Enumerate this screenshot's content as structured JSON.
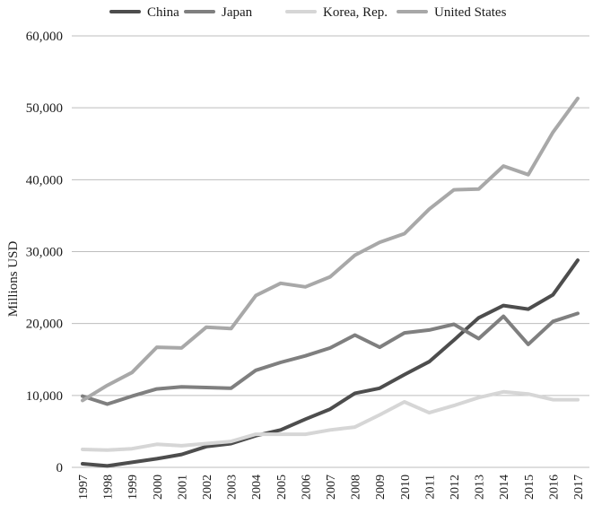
{
  "chart_data": {
    "type": "line",
    "title": "",
    "xlabel": "",
    "ylabel": "Millions USD",
    "ylim": [
      0,
      60000
    ],
    "yticks": [
      "0",
      "10,000",
      "20,000",
      "30,000",
      "40,000",
      "50,000",
      "60,000"
    ],
    "grid": true,
    "legend_position": "top",
    "x": [
      "1997",
      "1998",
      "1999",
      "2000",
      "2001",
      "2002",
      "2003",
      "2004",
      "2005",
      "2006",
      "2007",
      "2008",
      "2009",
      "2010",
      "2011",
      "2012",
      "2013",
      "2014",
      "2015",
      "2016",
      "2017"
    ],
    "series": [
      {
        "name": "China",
        "color": "#4d4d4d",
        "values": [
          500,
          200,
          700,
          1200,
          1800,
          2900,
          3300,
          4400,
          5200,
          6700,
          8100,
          10300,
          11000,
          12900,
          14700,
          17700,
          20800,
          22500,
          22000,
          24000,
          28800
        ]
      },
      {
        "name": "Japan",
        "color": "#7f7f7f",
        "values": [
          9900,
          8800,
          9900,
          10900,
          11200,
          11100,
          11000,
          13500,
          14600,
          15500,
          16600,
          18400,
          16700,
          18700,
          19100,
          19900,
          17900,
          21000,
          17100,
          20300,
          21400
        ]
      },
      {
        "name": "Korea, Rep.",
        "color": "#d6d6d6",
        "values": [
          2500,
          2400,
          2600,
          3200,
          3000,
          3300,
          3600,
          4600,
          4600,
          4600,
          5200,
          5600,
          7300,
          9100,
          7600,
          8600,
          9700,
          10500,
          10200,
          9400,
          9400
        ]
      },
      {
        "name": "United States",
        "color": "#a8a8a8",
        "values": [
          9300,
          11400,
          13200,
          16700,
          16600,
          19500,
          19300,
          23900,
          25600,
          25100,
          26500,
          29500,
          31300,
          32500,
          35900,
          38600,
          38700,
          41900,
          40700,
          46600,
          51300
        ]
      }
    ]
  }
}
